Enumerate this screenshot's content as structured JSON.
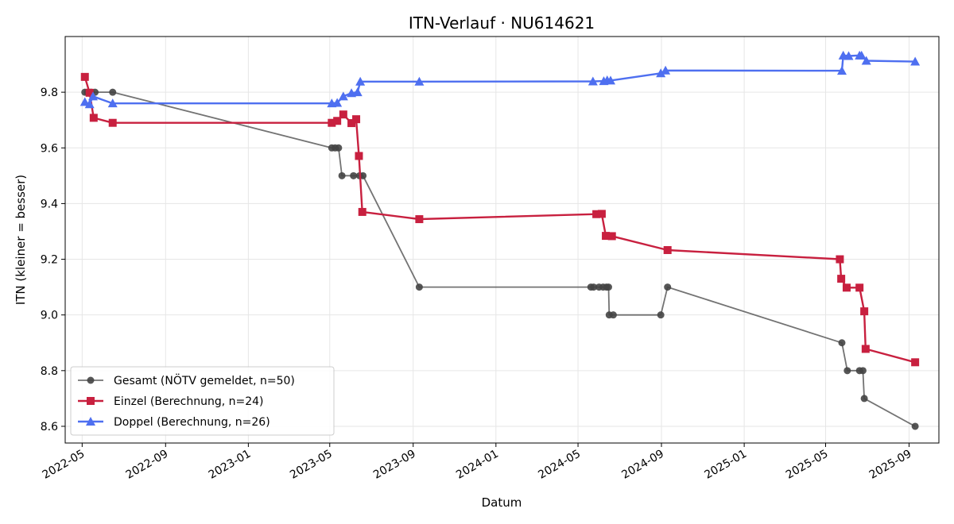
{
  "chart_data": {
    "type": "line",
    "title": "ITN-Verlauf · NU614621",
    "xlabel": "Datum",
    "ylabel": "ITN  (kleiner = besser)",
    "xlim": [
      "2022-04-06",
      "2025-10-15"
    ],
    "ylim": [
      8.54,
      10.0
    ],
    "xticks": [
      "2022-05",
      "2022-09",
      "2023-01",
      "2023-05",
      "2023-09",
      "2024-01",
      "2024-05",
      "2024-09",
      "2025-01",
      "2025-05",
      "2025-09"
    ],
    "yticks": [
      8.6,
      8.8,
      9.0,
      9.2,
      9.4,
      9.6,
      9.8
    ],
    "grid": true,
    "legend_position": "bottom-left",
    "series": [
      {
        "name": "Gesamt (NÖTV gemeldet, n=50)",
        "color": "#444444",
        "marker": "circle",
        "points": [
          [
            "2022-05-05",
            9.8
          ],
          [
            "2022-05-09",
            9.8
          ],
          [
            "2022-05-14",
            9.8
          ],
          [
            "2022-05-20",
            9.8
          ],
          [
            "2022-06-15",
            9.8
          ],
          [
            "2023-05-04",
            9.6
          ],
          [
            "2023-05-09",
            9.6
          ],
          [
            "2023-05-14",
            9.6
          ],
          [
            "2023-05-19",
            9.5
          ],
          [
            "2023-06-05",
            9.5
          ],
          [
            "2023-06-14",
            9.5
          ],
          [
            "2023-06-19",
            9.5
          ],
          [
            "2023-09-10",
            9.1
          ],
          [
            "2024-05-20",
            9.1
          ],
          [
            "2024-05-24",
            9.1
          ],
          [
            "2024-06-01",
            9.1
          ],
          [
            "2024-06-07",
            9.1
          ],
          [
            "2024-06-12",
            9.1
          ],
          [
            "2024-06-15",
            9.1
          ],
          [
            "2024-06-16",
            9.0
          ],
          [
            "2024-06-22",
            9.0
          ],
          [
            "2024-08-31",
            9.0
          ],
          [
            "2024-09-10",
            9.1
          ],
          [
            "2025-05-25",
            8.9
          ],
          [
            "2025-06-02",
            8.8
          ],
          [
            "2025-06-20",
            8.8
          ],
          [
            "2025-06-25",
            8.8
          ],
          [
            "2025-06-27",
            8.7
          ],
          [
            "2025-09-10",
            8.6
          ]
        ]
      },
      {
        "name": "Einzel (Berechnung, n=24)",
        "color": "#c8203f",
        "marker": "square",
        "points": [
          [
            "2022-05-05",
            9.855
          ],
          [
            "2022-05-12",
            9.798
          ],
          [
            "2022-05-18",
            9.708
          ],
          [
            "2022-06-15",
            9.69
          ],
          [
            "2023-05-04",
            9.69
          ],
          [
            "2023-05-12",
            9.697
          ],
          [
            "2023-05-21",
            9.72
          ],
          [
            "2023-06-02",
            9.689
          ],
          [
            "2023-06-09",
            9.703
          ],
          [
            "2023-06-13",
            9.571
          ],
          [
            "2023-06-18",
            9.37
          ],
          [
            "2023-09-10",
            9.344
          ],
          [
            "2024-05-28",
            9.362
          ],
          [
            "2024-06-05",
            9.363
          ],
          [
            "2024-06-11",
            9.284
          ],
          [
            "2024-06-20",
            9.283
          ],
          [
            "2024-09-10",
            9.233
          ],
          [
            "2025-05-22",
            9.2
          ],
          [
            "2025-05-24",
            9.13
          ],
          [
            "2025-06-01",
            9.098
          ],
          [
            "2025-06-20",
            9.098
          ],
          [
            "2025-06-27",
            9.013
          ],
          [
            "2025-06-29",
            8.878
          ],
          [
            "2025-09-10",
            8.83
          ]
        ]
      },
      {
        "name": "Doppel (Berechnung, n=26)",
        "color": "#4e6ff0",
        "marker": "triangle",
        "points": [
          [
            "2022-05-05",
            9.765
          ],
          [
            "2022-05-12",
            9.757
          ],
          [
            "2022-05-17",
            9.785
          ],
          [
            "2022-06-15",
            9.76
          ],
          [
            "2023-05-04",
            9.76
          ],
          [
            "2023-05-12",
            9.762
          ],
          [
            "2023-05-21",
            9.785
          ],
          [
            "2023-06-02",
            9.797
          ],
          [
            "2023-06-11",
            9.8
          ],
          [
            "2023-06-15",
            9.838
          ],
          [
            "2023-09-10",
            9.838
          ],
          [
            "2024-05-23",
            9.839
          ],
          [
            "2024-06-08",
            9.84
          ],
          [
            "2024-06-13",
            9.843
          ],
          [
            "2024-06-18",
            9.842
          ],
          [
            "2024-08-31",
            9.868
          ],
          [
            "2024-09-07",
            9.878
          ],
          [
            "2025-05-25",
            9.877
          ],
          [
            "2025-05-27",
            9.932
          ],
          [
            "2025-06-04",
            9.93
          ],
          [
            "2025-06-20",
            9.932
          ],
          [
            "2025-06-23",
            9.932
          ],
          [
            "2025-06-30",
            9.913
          ],
          [
            "2025-09-10",
            9.91
          ]
        ]
      }
    ]
  }
}
